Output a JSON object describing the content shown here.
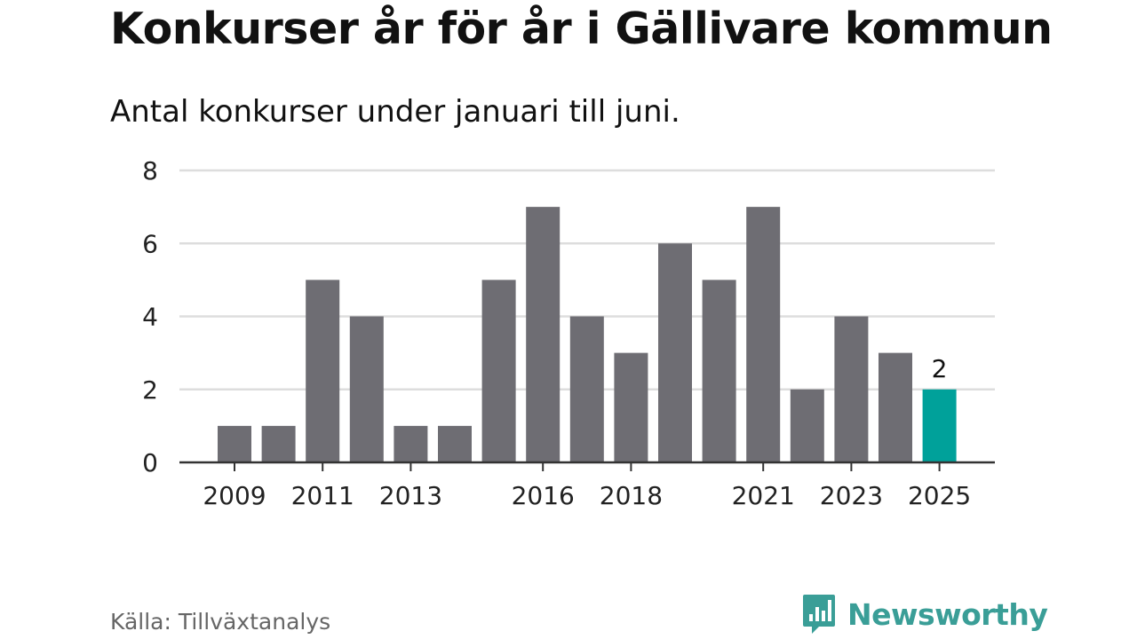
{
  "title": "Konkurser år för år i Gällivare kommun",
  "subtitle": "Antal konkurser under januari till juni.",
  "source": "Källa: Tillväxtanalys",
  "brand": {
    "name": "Newsworthy",
    "icon": "newsworthy-logo-icon",
    "color": "#3a9e97"
  },
  "chart_data": {
    "type": "bar",
    "categories": [
      "2009",
      "2010",
      "2011",
      "2012",
      "2013",
      "2014",
      "2015",
      "2016",
      "2017",
      "2018",
      "2019",
      "2020",
      "2021",
      "2022",
      "2023",
      "2024",
      "2025"
    ],
    "values": [
      1,
      1,
      5,
      4,
      1,
      1,
      5,
      7,
      4,
      3,
      6,
      5,
      7,
      2,
      4,
      3,
      2
    ],
    "x_tick_labels": [
      "2009",
      "2011",
      "2013",
      "2016",
      "2018",
      "2021",
      "2023",
      "2025"
    ],
    "y_ticks": [
      0,
      2,
      4,
      6,
      8
    ],
    "ylim": [
      0,
      8
    ],
    "grid": true,
    "highlight": {
      "category": "2025",
      "label": "2",
      "color": "#00a19a"
    },
    "colors": {
      "bar": "#6e6d73",
      "grid": "#dddddd",
      "axis": "#333333"
    }
  }
}
